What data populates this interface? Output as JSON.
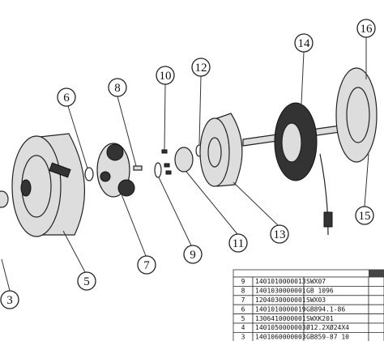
{
  "callouts": [
    {
      "label": "16"
    },
    {
      "label": "14"
    },
    {
      "label": "12"
    },
    {
      "label": "10"
    },
    {
      "label": "8"
    },
    {
      "label": "6"
    },
    {
      "label": "11"
    },
    {
      "label": "13"
    },
    {
      "label": "9"
    },
    {
      "label": "7"
    },
    {
      "label": "5"
    },
    {
      "label": "3"
    },
    {
      "label": "15"
    }
  ],
  "table": {
    "rows": [
      [
        "9",
        "1401010000013",
        "SWX07"
      ],
      [
        "8",
        "1401030000001",
        "GB 1096"
      ],
      [
        "7",
        "1204030000001",
        "SWX03"
      ],
      [
        "6",
        "1401010000019",
        "GB894.1-86"
      ],
      [
        "5",
        "1306410000001",
        "SWXK201"
      ],
      [
        "4",
        "1401050000003",
        "Ø12.2XØ24X4"
      ],
      [
        "3",
        "1401060000003",
        "GB859-87 10"
      ]
    ]
  }
}
